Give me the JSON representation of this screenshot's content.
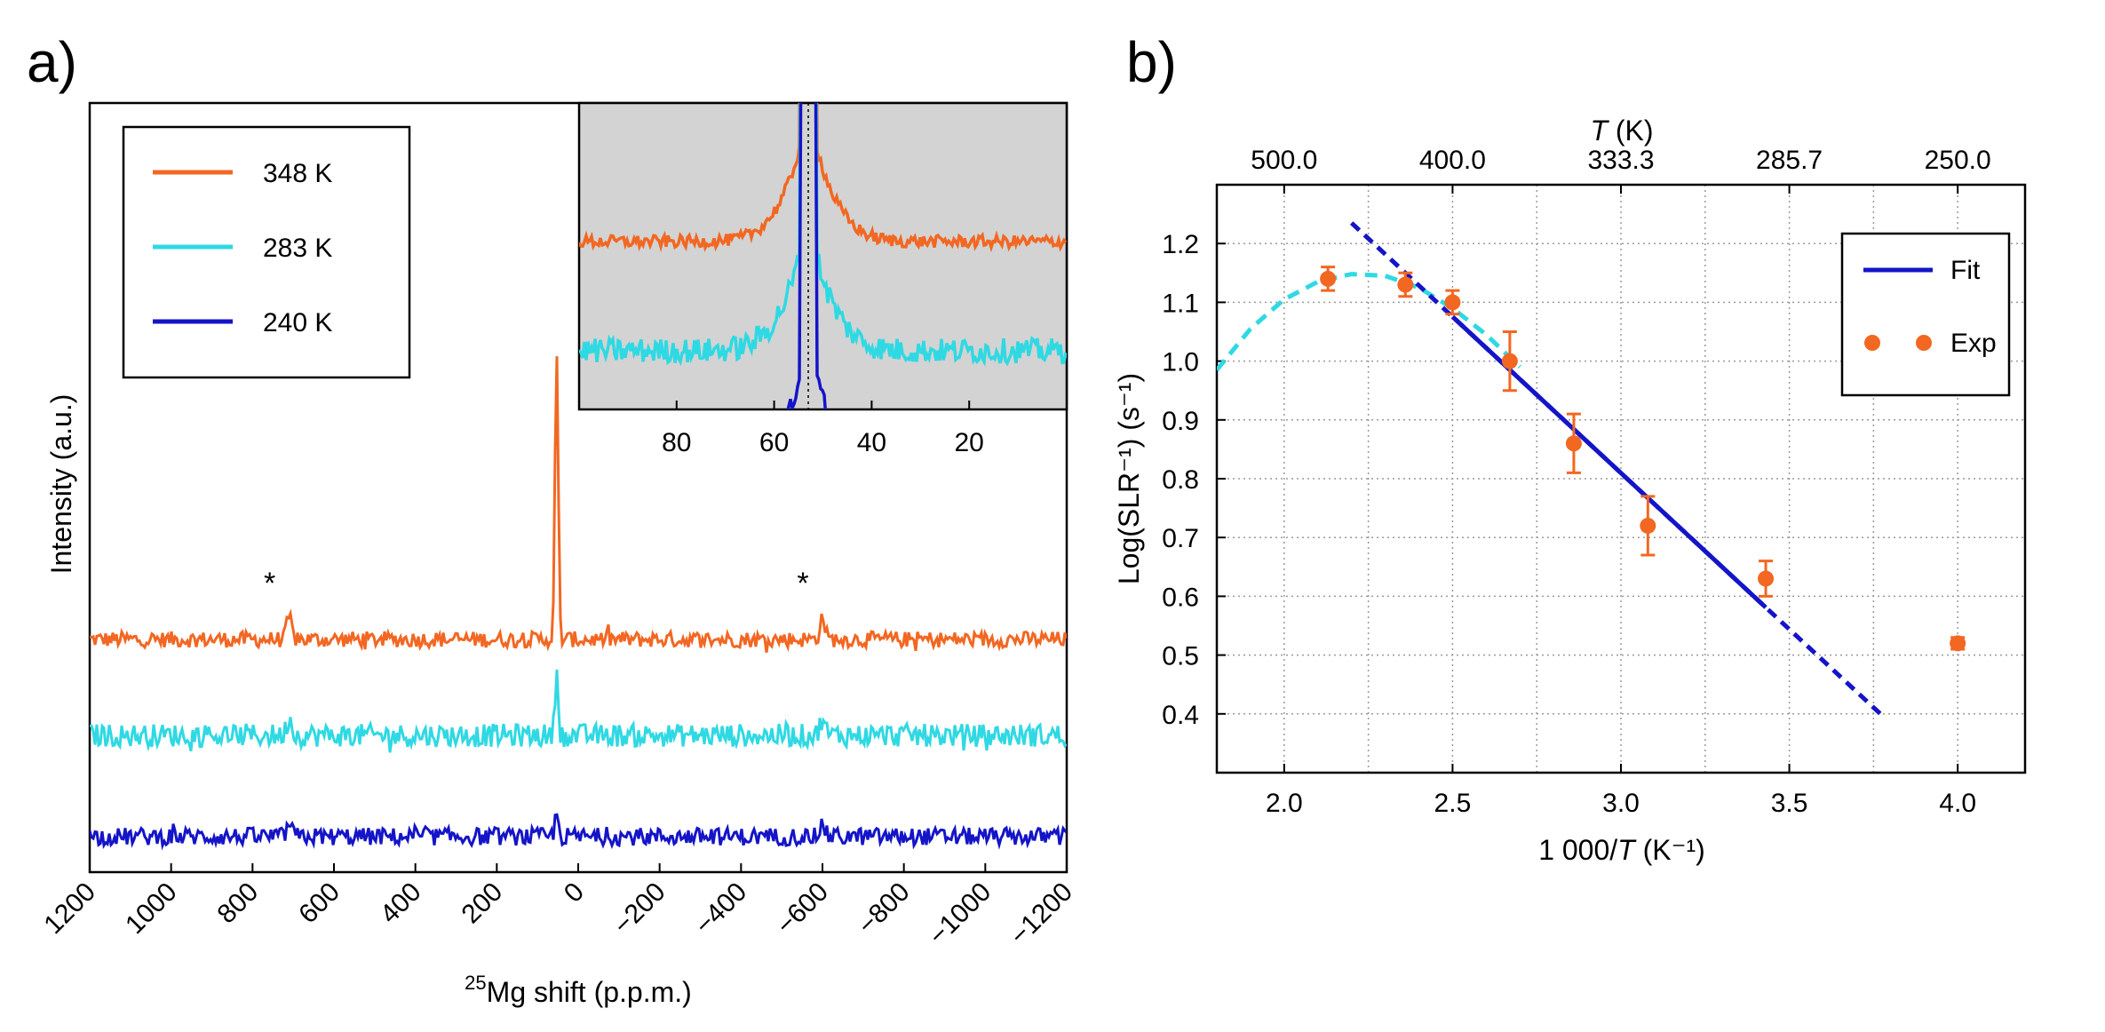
{
  "panel_a": {
    "label": "a)",
    "ylabel": "Intensity (a.u.)",
    "xlabel_sup": "25",
    "xlabel_main": "Mg shift (p.p.m.)",
    "peak_marker": "*"
  },
  "panel_b": {
    "label": "b)",
    "top_label_italic": "T",
    "top_label_rest": " (K)",
    "ylabel": "Log(SLR⁻¹) (s⁻¹)",
    "xlabel_prefix": "1 000/",
    "xlabel_italic": "T",
    "xlabel_suffix": " (K⁻¹)"
  },
  "chart_data": [
    {
      "type": "line",
      "title": "",
      "xlabel": "25Mg shift (p.p.m.)",
      "ylabel": "Intensity (a.u.)",
      "xlim": [
        1200,
        -1200
      ],
      "x_ticks": [
        1200,
        1000,
        800,
        600,
        400,
        200,
        0,
        -200,
        -400,
        -600,
        -800,
        -1000,
        -1200
      ],
      "x_tick_labels": [
        "1200",
        "1000",
        "800",
        "600",
        "400",
        "200",
        "0",
        "−200",
        "−400",
        "−600",
        "−800",
        "−1000",
        "−1200"
      ],
      "main_peak_ppm": 53,
      "spinning_sidebands_ppm": [
        710,
        -600
      ],
      "series": [
        {
          "name": "348 K",
          "color": "#f26722",
          "offset": 2,
          "peak_height": 4.4,
          "sideband_height": 0.35
        },
        {
          "name": "283 K",
          "color": "#2fd9e3",
          "offset": 1,
          "peak_height": 1.0,
          "sideband_height": 0.28
        },
        {
          "name": "240 K",
          "color": "#1414c8",
          "offset": 0,
          "peak_height": 0.38,
          "sideband_height": 0.2
        }
      ],
      "legend": {
        "position": "top-left",
        "entries": [
          "348 K",
          "283 K",
          "240 K"
        ]
      },
      "annotations": [
        "*",
        "*"
      ],
      "inset": {
        "xlim": [
          100,
          0
        ],
        "x_ticks": [
          80,
          60,
          40,
          20
        ],
        "x_tick_labels": [
          "80",
          "60",
          "40",
          "20"
        ],
        "background": "#d3d3d3",
        "reference_line_ppm": 53
      }
    },
    {
      "type": "scatter",
      "title": "",
      "xlabel": "1 000/T (K⁻¹)",
      "ylabel": "Log(SLR⁻¹) (s⁻¹)",
      "xlim": [
        1.8,
        4.2
      ],
      "ylim": [
        0.3,
        1.3
      ],
      "x_ticks": [
        2.0,
        2.5,
        3.0,
        3.5,
        4.0
      ],
      "x_tick_labels": [
        "2.0",
        "2.5",
        "3.0",
        "3.5",
        "4.0"
      ],
      "y_ticks": [
        0.4,
        0.5,
        0.6,
        0.7,
        0.8,
        0.9,
        1.0,
        1.1,
        1.2
      ],
      "y_tick_labels": [
        "0.4",
        "0.5",
        "0.6",
        "0.7",
        "0.8",
        "0.9",
        "1.0",
        "1.1",
        "1.2"
      ],
      "top_axis_label": "T (K)",
      "top_ticks_x": [
        2.0,
        2.5,
        3.0,
        3.5,
        4.0
      ],
      "top_tick_labels": [
        "500.0",
        "400.0",
        "333.3",
        "285.7",
        "250.0"
      ],
      "grid": true,
      "legend": {
        "position": "top-right",
        "entries": [
          "Fit",
          "Exp"
        ]
      },
      "series": [
        {
          "name": "Exp",
          "color": "#f26722",
          "x": [
            2.13,
            2.36,
            2.5,
            2.67,
            2.86,
            3.08,
            3.43,
            4.0
          ],
          "y": [
            1.14,
            1.13,
            1.1,
            1.0,
            0.86,
            0.72,
            0.63,
            0.52
          ],
          "err": [
            0.02,
            0.02,
            0.02,
            0.05,
            0.05,
            0.05,
            0.03,
            0.01
          ]
        },
        {
          "name": "Fit",
          "color": "#1414c8",
          "x": [
            2.2,
            3.78
          ],
          "y": [
            1.235,
            0.395
          ],
          "solid_range": [
            2.5,
            3.43
          ]
        },
        {
          "name": "Guide",
          "color": "#2fd9e3",
          "style": "dashed",
          "x": [
            1.8,
            1.9,
            2.0,
            2.1,
            2.2,
            2.3,
            2.4,
            2.5,
            2.6,
            2.7
          ],
          "y": [
            0.985,
            1.055,
            1.105,
            1.135,
            1.148,
            1.145,
            1.125,
            1.09,
            1.045,
            0.99
          ]
        }
      ]
    }
  ]
}
